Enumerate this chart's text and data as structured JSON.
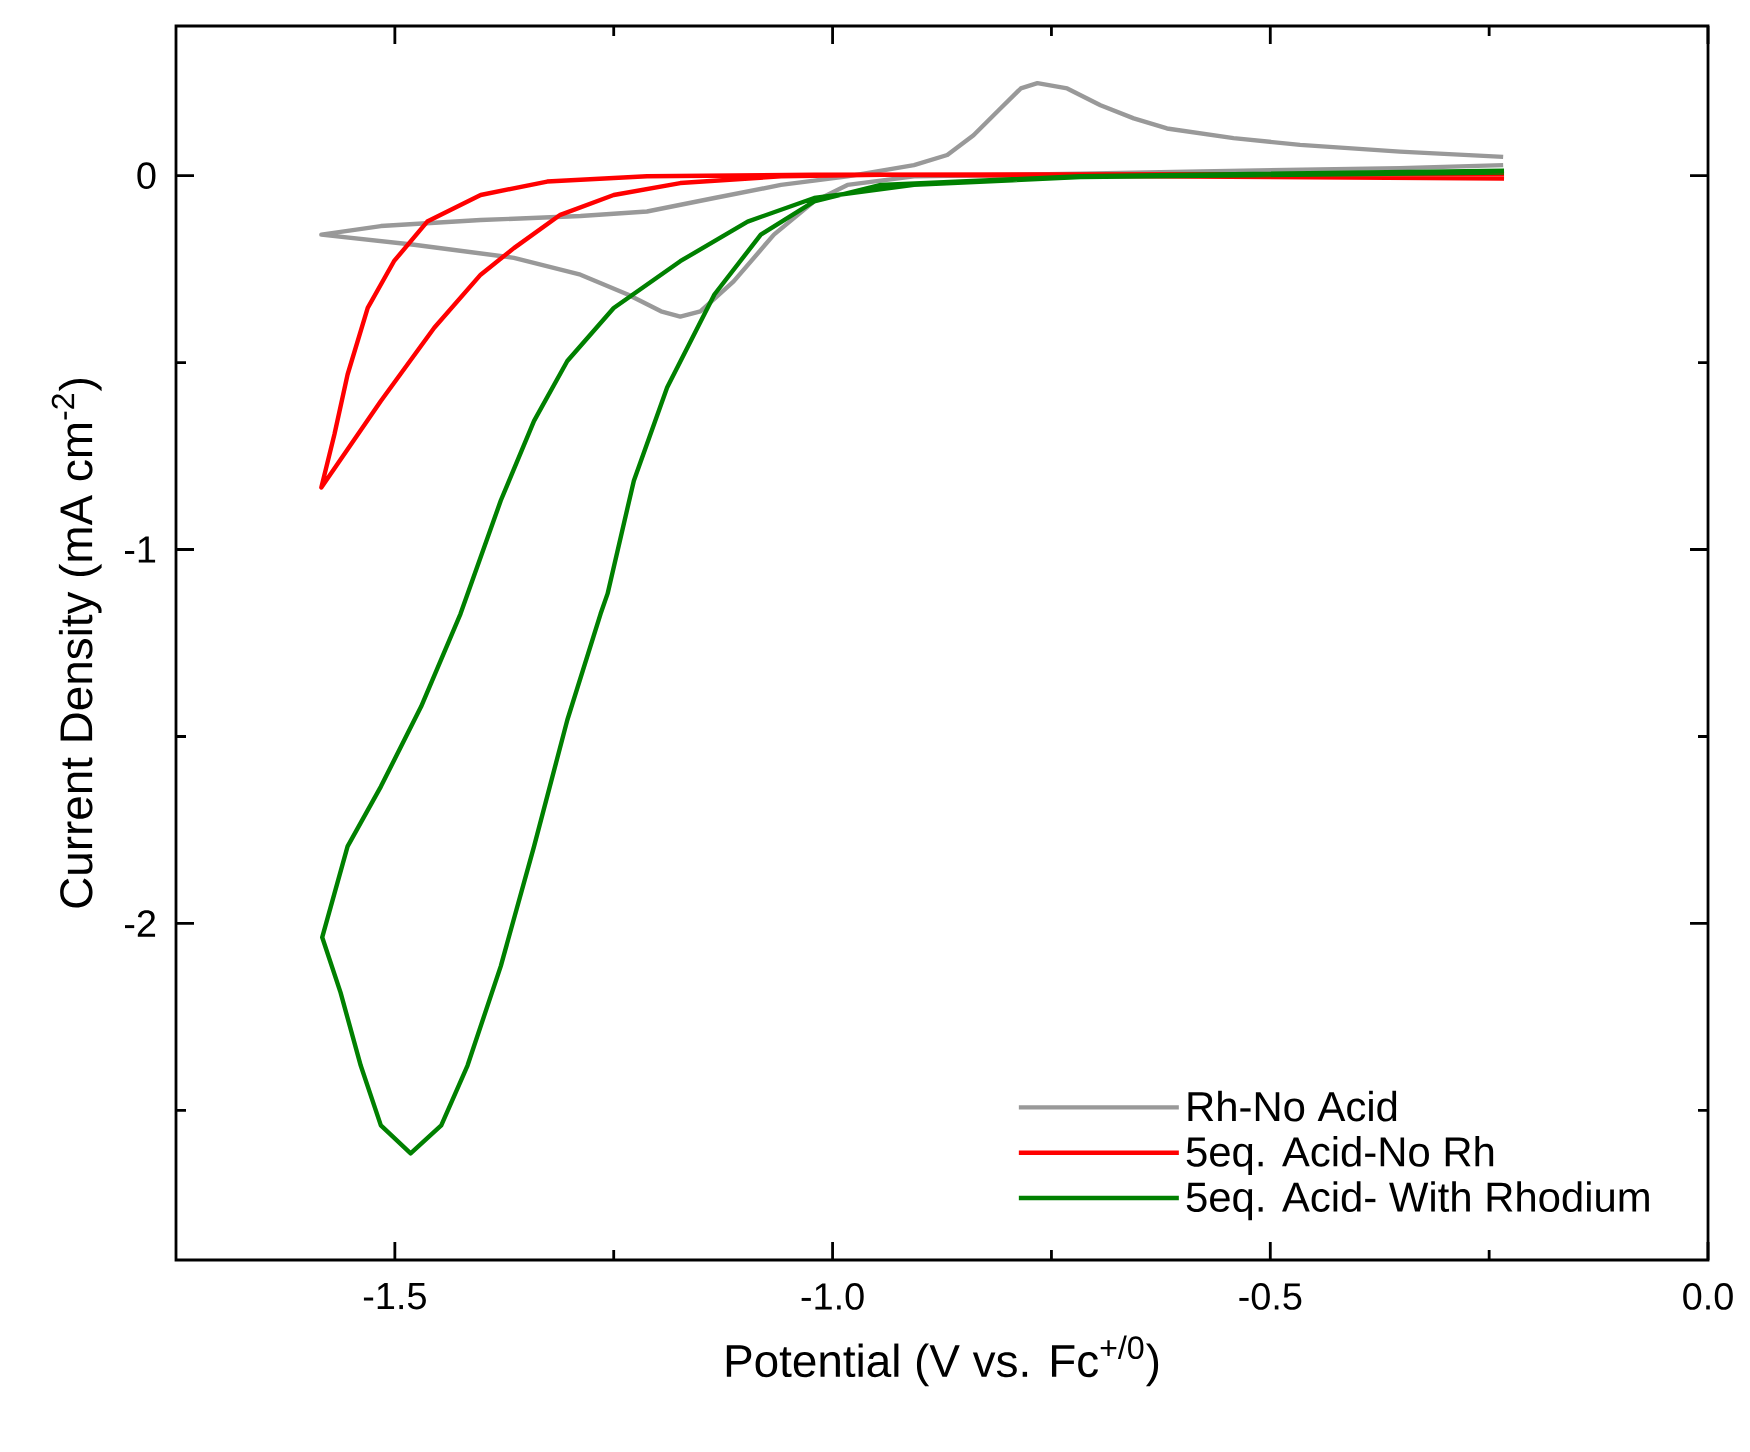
{
  "chart_data": {
    "type": "line",
    "xlabel": "Potential (V vs. Fc$^{+/0}$)",
    "ylabel": "Current Density (mA cm$^{-2}$)",
    "xlim": [
      -1.75,
      0.0
    ],
    "ylim": [
      -2.9,
      0.4
    ],
    "xticks": [
      {
        "value": -1.5,
        "label": "-1.5"
      },
      {
        "value": -1.25,
        "label": null
      },
      {
        "value": -1.0,
        "label": "-1.0"
      },
      {
        "value": -0.75,
        "label": null
      },
      {
        "value": -0.5,
        "label": "-0.5"
      },
      {
        "value": -0.25,
        "label": null
      },
      {
        "value": 0.0,
        "label": "0.0"
      }
    ],
    "yticks": [
      {
        "value": -2.5,
        "label": null
      },
      -2,
      {
        "value": -1.5,
        "label": null
      },
      -1,
      {
        "value": -0.5,
        "label": null
      },
      0
    ],
    "grid": false,
    "legend": "bottom right",
    "marker": "none",
    "line_style": "solid",
    "series": [
      {
        "name": "Rh-No Acid",
        "color": "#999999",
        "x": [
          -0.234,
          -0.352,
          -0.58,
          -0.717,
          -0.907,
          -0.983,
          -1.021,
          -1.067,
          -1.113,
          -1.151,
          -1.174,
          -1.196,
          -1.234,
          -1.288,
          -1.364,
          -1.478,
          -1.584,
          -1.516,
          -1.402,
          -1.288,
          -1.212,
          -1.135,
          -1.059,
          -0.983,
          -0.907,
          -0.869,
          -0.839,
          -0.808,
          -0.785,
          -0.766,
          -0.732,
          -0.694,
          -0.656,
          -0.618,
          -0.542,
          -0.466,
          -0.352,
          -0.234
        ],
        "values": [
          0.028,
          0.02,
          0.011,
          0.005,
          -0.002,
          -0.025,
          -0.069,
          -0.158,
          -0.283,
          -0.363,
          -0.377,
          -0.363,
          -0.318,
          -0.265,
          -0.22,
          -0.185,
          -0.158,
          -0.135,
          -0.119,
          -0.108,
          -0.096,
          -0.06,
          -0.025,
          -0.002,
          0.028,
          0.055,
          0.108,
          0.18,
          0.233,
          0.247,
          0.233,
          0.188,
          0.153,
          0.126,
          0.1,
          0.082,
          0.064,
          0.05
        ]
      },
      {
        "name": "5eq. Acid-No Rh",
        "color": "#ff0000",
        "x": [
          -0.233,
          -0.945,
          -1.059,
          -1.174,
          -1.25,
          -1.311,
          -1.364,
          -1.402,
          -1.455,
          -1.516,
          -1.584,
          -1.569,
          -1.554,
          -1.531,
          -1.501,
          -1.463,
          -1.402,
          -1.326,
          -1.212,
          -1.021,
          -0.233
        ],
        "values": [
          -0.008,
          0.002,
          -0.002,
          -0.02,
          -0.052,
          -0.105,
          -0.194,
          -0.265,
          -0.407,
          -0.603,
          -0.834,
          -0.692,
          -0.532,
          -0.354,
          -0.229,
          -0.123,
          -0.052,
          -0.016,
          -0.002,
          0.002,
          0.005
        ]
      },
      {
        "name": "5eq. Acid- With Rhodium",
        "color": "#008000",
        "x": [
          -0.233,
          -0.717,
          -0.945,
          -1.021,
          -1.082,
          -1.135,
          -1.189,
          -1.227,
          -1.257,
          -1.265,
          -1.303,
          -1.341,
          -1.379,
          -1.417,
          -1.447,
          -1.482,
          -1.516,
          -1.539,
          -1.562,
          -1.583,
          -1.554,
          -1.516,
          -1.47,
          -1.425,
          -1.379,
          -1.341,
          -1.303,
          -1.25,
          -1.174,
          -1.097,
          -1.021,
          -0.907,
          -0.717,
          -0.233
        ],
        "values": [
          0.013,
          -0.002,
          -0.025,
          -0.069,
          -0.158,
          -0.318,
          -0.567,
          -0.816,
          -1.118,
          -1.172,
          -1.456,
          -1.794,
          -2.114,
          -2.38,
          -2.54,
          -2.615,
          -2.54,
          -2.38,
          -2.185,
          -2.037,
          -1.794,
          -1.634,
          -1.42,
          -1.172,
          -0.869,
          -0.656,
          -0.496,
          -0.354,
          -0.229,
          -0.123,
          -0.06,
          -0.025,
          -0.004,
          0.008
        ]
      }
    ]
  }
}
